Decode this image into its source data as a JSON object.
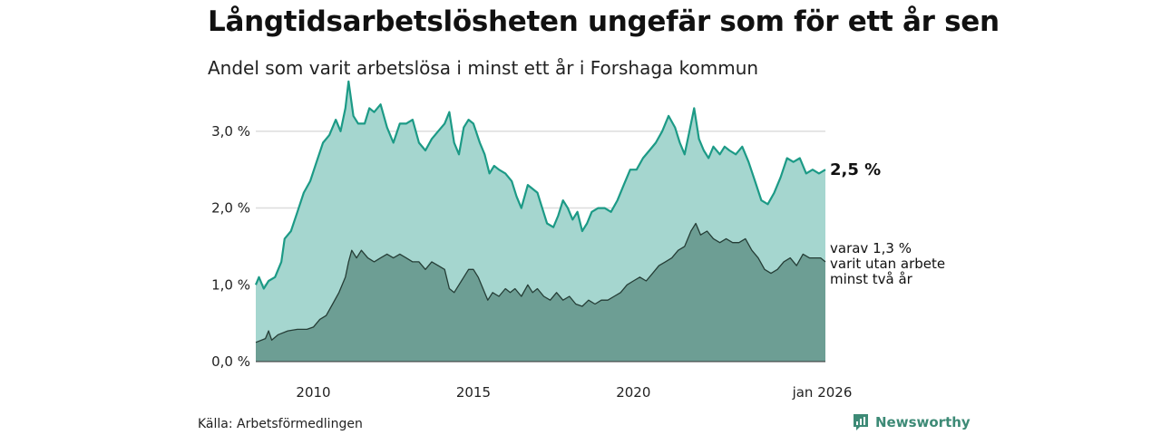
{
  "title": "Långtidsarbetslösheten ungefär som för ett år sen",
  "subtitle": "Andel som varit arbetslösa i minst ett år i Forshaga kommun",
  "source": "Källa: Arbetsförmedlingen",
  "brand": {
    "name": "Newsworthy",
    "icon": "newsworthy-logo-icon"
  },
  "colors": {
    "total_area": "#a5d6cf",
    "total_line": "#1c9a86",
    "twoyear_area": "#6d9e94",
    "twoyear_line": "#253d36",
    "grid": "#dddddd",
    "brand": "#3d8a76"
  },
  "chart_data": {
    "type": "area",
    "title": "Långtidsarbetslösheten ungefär som för ett år sen",
    "subtitle": "Andel som varit arbetslösa i minst ett år i Forshaga kommun",
    "xlabel": "",
    "ylabel": "",
    "xlim": [
      2008.2,
      2026.0
    ],
    "ylim": [
      0,
      3.6
    ],
    "y_ticks": [
      {
        "value": 0,
        "label": "0,0 %"
      },
      {
        "value": 1,
        "label": "1,0 %"
      },
      {
        "value": 2,
        "label": "2,0 %"
      },
      {
        "value": 3,
        "label": "3,0 %"
      }
    ],
    "x_ticks": [
      {
        "value": 2010,
        "label": "2010"
      },
      {
        "value": 2015,
        "label": "2015"
      },
      {
        "value": 2020,
        "label": "2020"
      },
      {
        "value": 2025.9,
        "label": "jan 2026"
      }
    ],
    "grid": true,
    "series": [
      {
        "name": "Minst ett år",
        "end_label": "2,5 %",
        "points": [
          [
            2008.2,
            1.0
          ],
          [
            2008.3,
            1.1
          ],
          [
            2008.45,
            0.95
          ],
          [
            2008.6,
            1.05
          ],
          [
            2008.8,
            1.1
          ],
          [
            2009.0,
            1.3
          ],
          [
            2009.1,
            1.6
          ],
          [
            2009.3,
            1.7
          ],
          [
            2009.5,
            1.95
          ],
          [
            2009.7,
            2.2
          ],
          [
            2009.9,
            2.35
          ],
          [
            2010.1,
            2.6
          ],
          [
            2010.3,
            2.85
          ],
          [
            2010.5,
            2.95
          ],
          [
            2010.7,
            3.15
          ],
          [
            2010.85,
            3.0
          ],
          [
            2011.0,
            3.3
          ],
          [
            2011.1,
            3.65
          ],
          [
            2011.25,
            3.2
          ],
          [
            2011.4,
            3.1
          ],
          [
            2011.6,
            3.1
          ],
          [
            2011.75,
            3.3
          ],
          [
            2011.9,
            3.25
          ],
          [
            2012.1,
            3.35
          ],
          [
            2012.3,
            3.05
          ],
          [
            2012.5,
            2.85
          ],
          [
            2012.7,
            3.1
          ],
          [
            2012.9,
            3.1
          ],
          [
            2013.1,
            3.15
          ],
          [
            2013.3,
            2.85
          ],
          [
            2013.5,
            2.75
          ],
          [
            2013.7,
            2.9
          ],
          [
            2013.9,
            3.0
          ],
          [
            2014.1,
            3.1
          ],
          [
            2014.25,
            3.25
          ],
          [
            2014.4,
            2.85
          ],
          [
            2014.55,
            2.7
          ],
          [
            2014.7,
            3.05
          ],
          [
            2014.85,
            3.15
          ],
          [
            2015.0,
            3.1
          ],
          [
            2015.2,
            2.85
          ],
          [
            2015.35,
            2.7
          ],
          [
            2015.5,
            2.45
          ],
          [
            2015.65,
            2.55
          ],
          [
            2015.8,
            2.5
          ],
          [
            2016.0,
            2.45
          ],
          [
            2016.2,
            2.35
          ],
          [
            2016.35,
            2.15
          ],
          [
            2016.5,
            2.0
          ],
          [
            2016.7,
            2.3
          ],
          [
            2016.85,
            2.25
          ],
          [
            2017.0,
            2.2
          ],
          [
            2017.15,
            2.0
          ],
          [
            2017.3,
            1.8
          ],
          [
            2017.5,
            1.75
          ],
          [
            2017.65,
            1.9
          ],
          [
            2017.8,
            2.1
          ],
          [
            2017.95,
            2.0
          ],
          [
            2018.1,
            1.85
          ],
          [
            2018.25,
            1.95
          ],
          [
            2018.4,
            1.7
          ],
          [
            2018.55,
            1.8
          ],
          [
            2018.7,
            1.95
          ],
          [
            2018.9,
            2.0
          ],
          [
            2019.1,
            2.0
          ],
          [
            2019.3,
            1.95
          ],
          [
            2019.5,
            2.1
          ],
          [
            2019.7,
            2.3
          ],
          [
            2019.9,
            2.5
          ],
          [
            2020.1,
            2.5
          ],
          [
            2020.3,
            2.65
          ],
          [
            2020.5,
            2.75
          ],
          [
            2020.7,
            2.85
          ],
          [
            2020.9,
            3.0
          ],
          [
            2021.1,
            3.2
          ],
          [
            2021.3,
            3.05
          ],
          [
            2021.45,
            2.85
          ],
          [
            2021.6,
            2.7
          ],
          [
            2021.75,
            3.0
          ],
          [
            2021.9,
            3.3
          ],
          [
            2022.05,
            2.9
          ],
          [
            2022.2,
            2.75
          ],
          [
            2022.35,
            2.65
          ],
          [
            2022.5,
            2.8
          ],
          [
            2022.7,
            2.7
          ],
          [
            2022.85,
            2.8
          ],
          [
            2023.0,
            2.75
          ],
          [
            2023.2,
            2.7
          ],
          [
            2023.4,
            2.8
          ],
          [
            2023.6,
            2.6
          ],
          [
            2023.8,
            2.35
          ],
          [
            2024.0,
            2.1
          ],
          [
            2024.2,
            2.05
          ],
          [
            2024.4,
            2.2
          ],
          [
            2024.6,
            2.4
          ],
          [
            2024.8,
            2.65
          ],
          [
            2025.0,
            2.6
          ],
          [
            2025.2,
            2.65
          ],
          [
            2025.4,
            2.45
          ],
          [
            2025.6,
            2.5
          ],
          [
            2025.8,
            2.45
          ],
          [
            2026.0,
            2.5
          ]
        ]
      },
      {
        "name": "Minst två år",
        "end_label_lines": [
          "varav 1,3 %",
          "varit utan arbete",
          "minst två år"
        ],
        "points": [
          [
            2008.2,
            0.25
          ],
          [
            2008.5,
            0.3
          ],
          [
            2008.6,
            0.4
          ],
          [
            2008.7,
            0.28
          ],
          [
            2008.9,
            0.35
          ],
          [
            2009.2,
            0.4
          ],
          [
            2009.5,
            0.42
          ],
          [
            2009.8,
            0.42
          ],
          [
            2010.0,
            0.45
          ],
          [
            2010.2,
            0.55
          ],
          [
            2010.4,
            0.6
          ],
          [
            2010.6,
            0.75
          ],
          [
            2010.8,
            0.9
          ],
          [
            2011.0,
            1.1
          ],
          [
            2011.1,
            1.3
          ],
          [
            2011.2,
            1.45
          ],
          [
            2011.35,
            1.35
          ],
          [
            2011.5,
            1.45
          ],
          [
            2011.7,
            1.35
          ],
          [
            2011.9,
            1.3
          ],
          [
            2012.1,
            1.35
          ],
          [
            2012.3,
            1.4
          ],
          [
            2012.5,
            1.35
          ],
          [
            2012.7,
            1.4
          ],
          [
            2012.9,
            1.35
          ],
          [
            2013.1,
            1.3
          ],
          [
            2013.3,
            1.3
          ],
          [
            2013.5,
            1.2
          ],
          [
            2013.7,
            1.3
          ],
          [
            2013.9,
            1.25
          ],
          [
            2014.1,
            1.2
          ],
          [
            2014.25,
            0.95
          ],
          [
            2014.4,
            0.9
          ],
          [
            2014.55,
            1.0
          ],
          [
            2014.7,
            1.1
          ],
          [
            2014.85,
            1.2
          ],
          [
            2015.0,
            1.2
          ],
          [
            2015.15,
            1.1
          ],
          [
            2015.3,
            0.95
          ],
          [
            2015.45,
            0.8
          ],
          [
            2015.6,
            0.9
          ],
          [
            2015.8,
            0.85
          ],
          [
            2016.0,
            0.95
          ],
          [
            2016.15,
            0.9
          ],
          [
            2016.3,
            0.95
          ],
          [
            2016.5,
            0.85
          ],
          [
            2016.7,
            1.0
          ],
          [
            2016.85,
            0.9
          ],
          [
            2017.0,
            0.95
          ],
          [
            2017.2,
            0.85
          ],
          [
            2017.4,
            0.8
          ],
          [
            2017.6,
            0.9
          ],
          [
            2017.8,
            0.8
          ],
          [
            2018.0,
            0.85
          ],
          [
            2018.2,
            0.75
          ],
          [
            2018.4,
            0.72
          ],
          [
            2018.6,
            0.8
          ],
          [
            2018.8,
            0.75
          ],
          [
            2019.0,
            0.8
          ],
          [
            2019.2,
            0.8
          ],
          [
            2019.4,
            0.85
          ],
          [
            2019.6,
            0.9
          ],
          [
            2019.8,
            1.0
          ],
          [
            2020.0,
            1.05
          ],
          [
            2020.2,
            1.1
          ],
          [
            2020.4,
            1.05
          ],
          [
            2020.6,
            1.15
          ],
          [
            2020.8,
            1.25
          ],
          [
            2021.0,
            1.3
          ],
          [
            2021.2,
            1.35
          ],
          [
            2021.4,
            1.45
          ],
          [
            2021.6,
            1.5
          ],
          [
            2021.8,
            1.7
          ],
          [
            2021.95,
            1.8
          ],
          [
            2022.1,
            1.65
          ],
          [
            2022.3,
            1.7
          ],
          [
            2022.5,
            1.6
          ],
          [
            2022.7,
            1.55
          ],
          [
            2022.9,
            1.6
          ],
          [
            2023.1,
            1.55
          ],
          [
            2023.3,
            1.55
          ],
          [
            2023.5,
            1.6
          ],
          [
            2023.7,
            1.45
          ],
          [
            2023.9,
            1.35
          ],
          [
            2024.1,
            1.2
          ],
          [
            2024.3,
            1.15
          ],
          [
            2024.5,
            1.2
          ],
          [
            2024.7,
            1.3
          ],
          [
            2024.9,
            1.35
          ],
          [
            2025.1,
            1.25
          ],
          [
            2025.3,
            1.4
          ],
          [
            2025.5,
            1.35
          ],
          [
            2025.7,
            1.35
          ],
          [
            2025.85,
            1.35
          ],
          [
            2026.0,
            1.3
          ]
        ]
      }
    ]
  }
}
